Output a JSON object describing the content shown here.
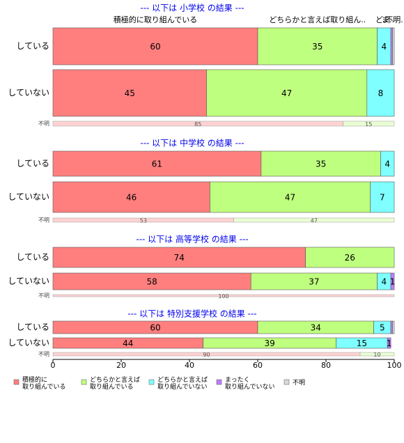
{
  "chart_data": {
    "type": "bar",
    "series": [
      {
        "name": "積極的に\n取り組んでいる",
        "color": "#ff7f7f"
      },
      {
        "name": "どちらかと言えば\n取り組んでいる",
        "color": "#bfff7f"
      },
      {
        "name": "どちらかと言えば\n取り組んでいない",
        "color": "#7fffff"
      },
      {
        "name": "まったく\n取り組んでいない",
        "color": "#bf7fff"
      },
      {
        "name": "不明",
        "color": "#d9d9d9"
      }
    ],
    "header_labels": [
      "積極的に取り組んでいる",
      "どちらかと言えば取り組ん..",
      "ど..",
      "ま..",
      "不明."
    ],
    "panels": [
      {
        "title": "--- 以下は 小学校 の結果 ---",
        "rows": [
          {
            "label": "している",
            "values": [
              60,
              35,
              4,
              0.5,
              0.5
            ]
          },
          {
            "label": "していない",
            "values": [
              45,
              47,
              8,
              0,
              0
            ]
          },
          {
            "label": "不明",
            "values": [
              85,
              15,
              0,
              0,
              0
            ]
          }
        ]
      },
      {
        "title": "--- 以下は 中学校 の結果 ---",
        "rows": [
          {
            "label": "している",
            "values": [
              61,
              35,
              4,
              0,
              0
            ]
          },
          {
            "label": "していない",
            "values": [
              46,
              47,
              7,
              0,
              0
            ]
          },
          {
            "label": "不明",
            "values": [
              53,
              47,
              0,
              0,
              0
            ]
          }
        ]
      },
      {
        "title": "--- 以下は 高等学校 の結果 ---",
        "rows": [
          {
            "label": "している",
            "values": [
              74,
              26,
              0,
              0,
              0
            ]
          },
          {
            "label": "していない",
            "values": [
              58,
              37,
              4,
              1,
              0
            ]
          },
          {
            "label": "不明",
            "values": [
              100,
              0,
              0,
              0,
              0
            ]
          }
        ]
      },
      {
        "title": "--- 以下は 特別支援学校 の結果 ---",
        "rows": [
          {
            "label": "している",
            "values": [
              60,
              34,
              5,
              0.5,
              0.5
            ]
          },
          {
            "label": "していない",
            "values": [
              44,
              39,
              15,
              1,
              0
            ]
          },
          {
            "label": "不明",
            "values": [
              90,
              10,
              0,
              0,
              0
            ]
          }
        ]
      }
    ],
    "xlim": [
      0,
      100
    ],
    "xticks": [
      0,
      20,
      40,
      60,
      80,
      100
    ]
  }
}
